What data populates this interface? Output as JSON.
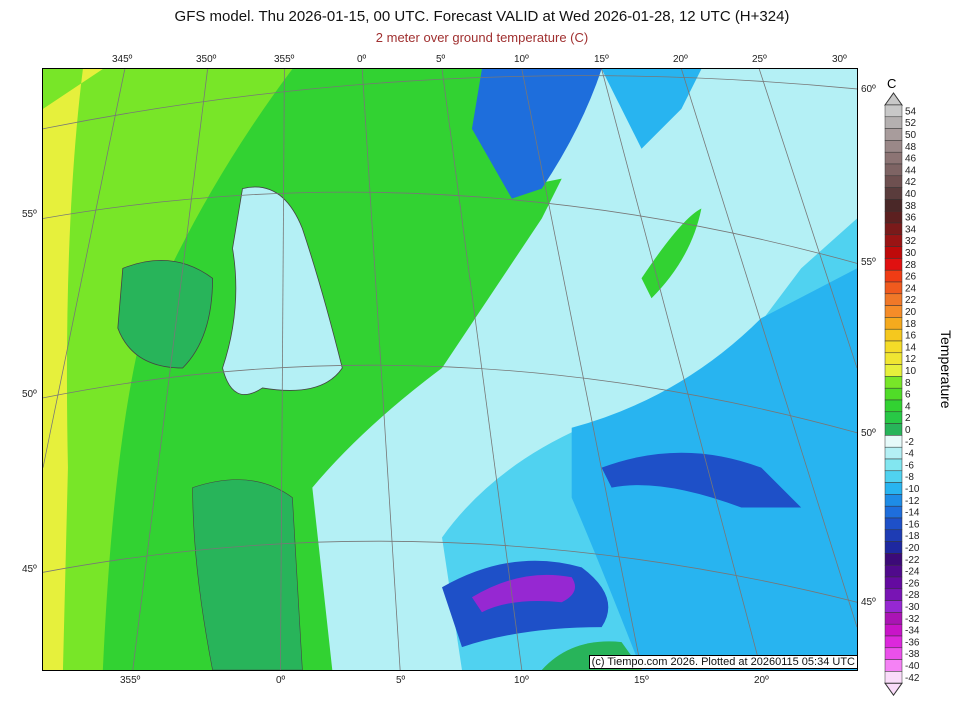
{
  "title": "GFS model. Thu 2026-01-15, 00 UTC. Forecast VALID at Wed 2026-01-28, 12 UTC (H+324)",
  "subtitle": "2 meter over ground temperature (C)",
  "credit": "(c) Tiempo.com 2026. Plotted at 20260115 05:34 UTC",
  "axes": {
    "top_lon": [
      "345º",
      "350º",
      "355º",
      "0º",
      "5º",
      "10º",
      "15º",
      "20º",
      "25º",
      "30º"
    ],
    "bottom_lon": [
      "355º",
      "0º",
      "5º",
      "10º",
      "15º",
      "20º"
    ],
    "left_lat": [
      "55º",
      "50º",
      "45º"
    ],
    "right_lat": [
      "60º",
      "55º",
      "50º",
      "45º"
    ]
  },
  "colorbar": {
    "unit": "C",
    "label": "Temperature",
    "values": [
      54,
      52,
      50,
      48,
      46,
      44,
      42,
      40,
      38,
      36,
      34,
      32,
      30,
      28,
      26,
      24,
      22,
      20,
      18,
      16,
      14,
      12,
      10,
      8,
      6,
      4,
      2,
      0,
      -2,
      -4,
      -6,
      -8,
      -10,
      -12,
      -14,
      -16,
      -18,
      -20,
      -22,
      -24,
      -26,
      -28,
      -30,
      -32,
      -34,
      -36,
      -38,
      -40,
      -42
    ],
    "colors": [
      "#c8c8c8",
      "#b4b0b0",
      "#a89c9c",
      "#9a8888",
      "#8c7474",
      "#7e6464",
      "#6e5050",
      "#5a3c3c",
      "#4a2828",
      "#5c2020",
      "#7a1a1a",
      "#9a1414",
      "#be0a0a",
      "#e01010",
      "#f03c14",
      "#f05a1e",
      "#f07828",
      "#f58c28",
      "#f5aa1e",
      "#f5c81e",
      "#f5dc28",
      "#f0e632",
      "#e6f03c",
      "#78e628",
      "#50dc28",
      "#32d232",
      "#28c846",
      "#28b45a",
      "#e6fafa",
      "#b4f0f5",
      "#82e6f0",
      "#50d2f0",
      "#28b4f0",
      "#1e8ce6",
      "#1e6edc",
      "#1e50c8",
      "#1e3cb4",
      "#1e28a0",
      "#3c0a78",
      "#500a8c",
      "#640aa0",
      "#7814b4",
      "#9628d2",
      "#aa14b4",
      "#c814c8",
      "#dc28dc",
      "#eb50eb",
      "#f582f5",
      "#fadcfa"
    ]
  }
}
